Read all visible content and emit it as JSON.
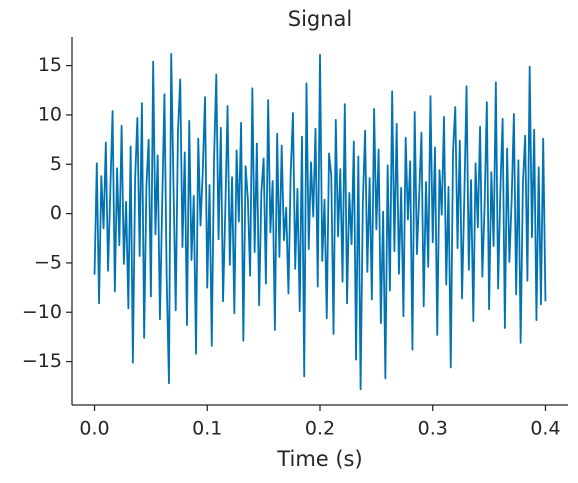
{
  "chart_data": {
    "type": "line",
    "title": "Signal",
    "xlabel": "Time (s)",
    "color": "#0173b2",
    "xlim": [
      -0.02,
      0.42
    ],
    "ylim": [
      -19.4,
      17.9
    ],
    "xticks": [
      {
        "value": 0,
        "label": "0.0"
      },
      0.1,
      0.2,
      0.3,
      0.4
    ],
    "yticks": [
      {
        "value": -15,
        "label": "−15"
      },
      {
        "value": -10,
        "label": "−10"
      },
      {
        "value": -5,
        "label": "−5"
      },
      0,
      5,
      10,
      15
    ],
    "x": [
      0,
      0.002,
      0.004,
      0.006,
      0.008,
      0.01,
      0.012,
      0.014,
      0.016,
      0.018,
      0.02,
      0.022,
      0.024,
      0.026,
      0.028,
      0.03,
      0.032,
      0.034,
      0.036,
      0.038,
      0.04,
      0.042,
      0.044,
      0.046,
      0.048,
      0.05,
      0.052,
      0.054,
      0.056,
      0.058,
      0.06,
      0.062,
      0.064,
      0.066,
      0.068,
      0.07,
      0.072,
      0.074,
      0.076,
      0.078,
      0.08,
      0.082,
      0.084,
      0.086,
      0.088,
      0.09,
      0.092,
      0.094,
      0.096,
      0.098,
      0.1,
      0.102,
      0.104,
      0.106,
      0.108,
      0.11,
      0.112,
      0.114,
      0.116,
      0.118,
      0.12,
      0.122,
      0.124,
      0.126,
      0.128,
      0.13,
      0.132,
      0.134,
      0.136,
      0.138,
      0.14,
      0.142,
      0.144,
      0.146,
      0.148,
      0.15,
      0.152,
      0.154,
      0.156,
      0.158,
      0.16,
      0.162,
      0.164,
      0.166,
      0.168,
      0.17,
      0.172,
      0.174,
      0.176,
      0.178,
      0.18,
      0.182,
      0.184,
      0.186,
      0.188,
      0.19,
      0.192,
      0.194,
      0.196,
      0.198,
      0.2,
      0.202,
      0.204,
      0.206,
      0.208,
      0.21,
      0.212,
      0.214,
      0.216,
      0.218,
      0.22,
      0.222,
      0.224,
      0.226,
      0.228,
      0.23,
      0.232,
      0.234,
      0.236,
      0.238,
      0.24,
      0.242,
      0.244,
      0.246,
      0.248,
      0.25,
      0.252,
      0.254,
      0.256,
      0.258,
      0.26,
      0.262,
      0.264,
      0.266,
      0.268,
      0.27,
      0.272,
      0.274,
      0.276,
      0.278,
      0.28,
      0.282,
      0.284,
      0.286,
      0.288,
      0.29,
      0.292,
      0.294,
      0.296,
      0.298,
      0.3,
      0.302,
      0.304,
      0.306,
      0.308,
      0.31,
      0.312,
      0.314,
      0.316,
      0.318,
      0.32,
      0.322,
      0.324,
      0.326,
      0.328,
      0.33,
      0.332,
      0.334,
      0.336,
      0.338,
      0.34,
      0.342,
      0.344,
      0.346,
      0.348,
      0.35,
      0.352,
      0.354,
      0.356,
      0.358,
      0.36,
      0.362,
      0.364,
      0.366,
      0.368,
      0.37,
      0.372,
      0.374,
      0.376,
      0.378,
      0.38,
      0.382,
      0.384,
      0.386,
      0.388,
      0.39,
      0.392,
      0.394,
      0.396,
      0.398,
      0.4
    ],
    "values": [
      -6.2,
      5.1,
      -9.1,
      3.8,
      -1.5,
      7.2,
      -5.8,
      2.4,
      10.4,
      -7.9,
      4.6,
      -3.2,
      8.9,
      -5.1,
      1.2,
      -9.6,
      6.8,
      -15.1,
      3.5,
      9.7,
      -4.3,
      11.2,
      -12.6,
      2.8,
      7.5,
      -8.4,
      15.4,
      -2.1,
      5.9,
      -10.7,
      0.9,
      12.1,
      -6.6,
      -17.2,
      16.2,
      3.1,
      -9.8,
      8.3,
      13.6,
      -3.4,
      6.2,
      -11.3,
      9.4,
      -4.7,
      1.8,
      -14.2,
      7.6,
      -1.2,
      4.3,
      11.8,
      -7.5,
      2.9,
      -13.4,
      5.5,
      14.1,
      -2.6,
      8.7,
      -8.9,
      0.4,
      10.9,
      -5.2,
      3.7,
      -10.1,
      6.4,
      -0.8,
      9.2,
      -12.9,
      4.8,
      1.5,
      -6.3,
      12.7,
      -3.9,
      7.1,
      -9.3,
      2.2,
      5.6,
      -7.1,
      11.5,
      -1.9,
      3.3,
      -11.8,
      8.1,
      -4.4,
      6.9,
      -2.7,
      0.6,
      -8.1,
      4.1,
      10.2,
      -5.6,
      2.5,
      -9.9,
      7.8,
      -16.5,
      13.2,
      -3.6,
      5.2,
      -0.3,
      8.6,
      -7.4,
      16.1,
      -4.8,
      1.4,
      -10.6,
      6.1,
      3.9,
      -12.2,
      9.5,
      -2.3,
      4.5,
      -6.9,
      11.1,
      -9.1,
      2.1,
      -3.1,
      7.3,
      -14.8,
      5.8,
      -17.8,
      1.1,
      8.4,
      -5.9,
      3.6,
      -8.7,
      10.6,
      -1.6,
      6.5,
      -11.1,
      0.2,
      -16.7,
      4.9,
      -7.8,
      12.4,
      -3.8,
      9.1,
      -6.1,
      2.6,
      -10.4,
      7.7,
      -0.6,
      5.3,
      -13.8,
      10.3,
      -4.1,
      1.9,
      8.2,
      -9.4,
      3.2,
      -5.4,
      11.9,
      -2.9,
      6.7,
      -12.3,
      4.4,
      -0.1,
      9.8,
      -7.2,
      2.7,
      -15.6,
      6.3,
      10.8,
      -3.5,
      7.4,
      -8.6,
      1.6,
      12.9,
      -5.7,
      3.4,
      -10.9,
      5.1,
      -1.4,
      8.8,
      -6.4,
      0.7,
      11.3,
      -9.7,
      4.2,
      -3.3,
      13.3,
      -7.6,
      2.3,
      9.6,
      -11.6,
      6.6,
      -4.9,
      1.3,
      10.1,
      -8.2,
      5.4,
      -13.1,
      3.1,
      7.9,
      -6.8,
      14.9,
      -2.4,
      8.5,
      -10.8,
      4.7,
      -9.2,
      7.6,
      -8.9
    ]
  }
}
